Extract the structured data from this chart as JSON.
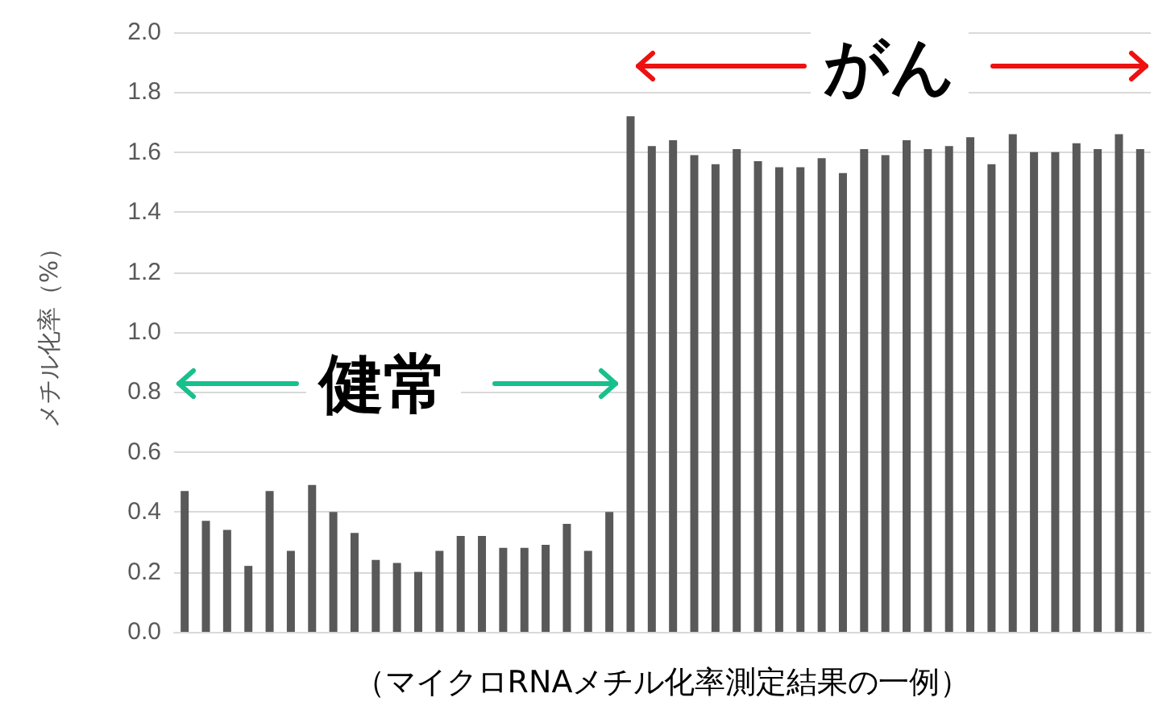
{
  "chart_data": {
    "type": "bar",
    "ylabel": "メチル化率（%）",
    "xlabel": "（マイクロRNAメチル化率測定結果の一例）",
    "categories": [
      null,
      null,
      null,
      null,
      null,
      null,
      null,
      null,
      null,
      null,
      null,
      null,
      null,
      null,
      null,
      null,
      null,
      null,
      null,
      null,
      null,
      null,
      null,
      null,
      null,
      null,
      null,
      null,
      null,
      null,
      null,
      null,
      null,
      null,
      null,
      null,
      null,
      null,
      null,
      null,
      null,
      null,
      null,
      null,
      null,
      null
    ],
    "values": [
      0.47,
      0.37,
      0.34,
      0.22,
      0.47,
      0.27,
      0.49,
      0.4,
      0.33,
      0.24,
      0.23,
      0.2,
      0.27,
      0.32,
      0.32,
      0.28,
      0.28,
      0.29,
      0.36,
      0.27,
      0.4,
      1.72,
      1.62,
      1.64,
      1.59,
      1.56,
      1.61,
      1.57,
      1.55,
      1.55,
      1.58,
      1.53,
      1.61,
      1.59,
      1.64,
      1.61,
      1.62,
      1.65,
      1.56,
      1.66,
      1.6,
      1.6,
      1.63,
      1.61,
      1.66,
      1.61
    ],
    "color": "#595959",
    "ylim": [
      0,
      2
    ],
    "yticks": [
      {
        "value": 0,
        "label": "0.0"
      },
      {
        "value": 0.2,
        "label": "0.2"
      },
      {
        "value": 0.4,
        "label": "0.4"
      },
      {
        "value": 0.6,
        "label": "0.6"
      },
      {
        "value": 0.8,
        "label": "0.8"
      },
      {
        "value": 1,
        "label": "1.0"
      },
      {
        "value": 1.2,
        "label": "1.2"
      },
      {
        "value": 1.4,
        "label": "1.4"
      },
      {
        "value": 1.6,
        "label": "1.6"
      },
      {
        "value": 1.8,
        "label": "1.8"
      },
      {
        "value": 2,
        "label": "2.0"
      }
    ],
    "grid": "y",
    "annotations": [
      "健常",
      "がん"
    ]
  }
}
